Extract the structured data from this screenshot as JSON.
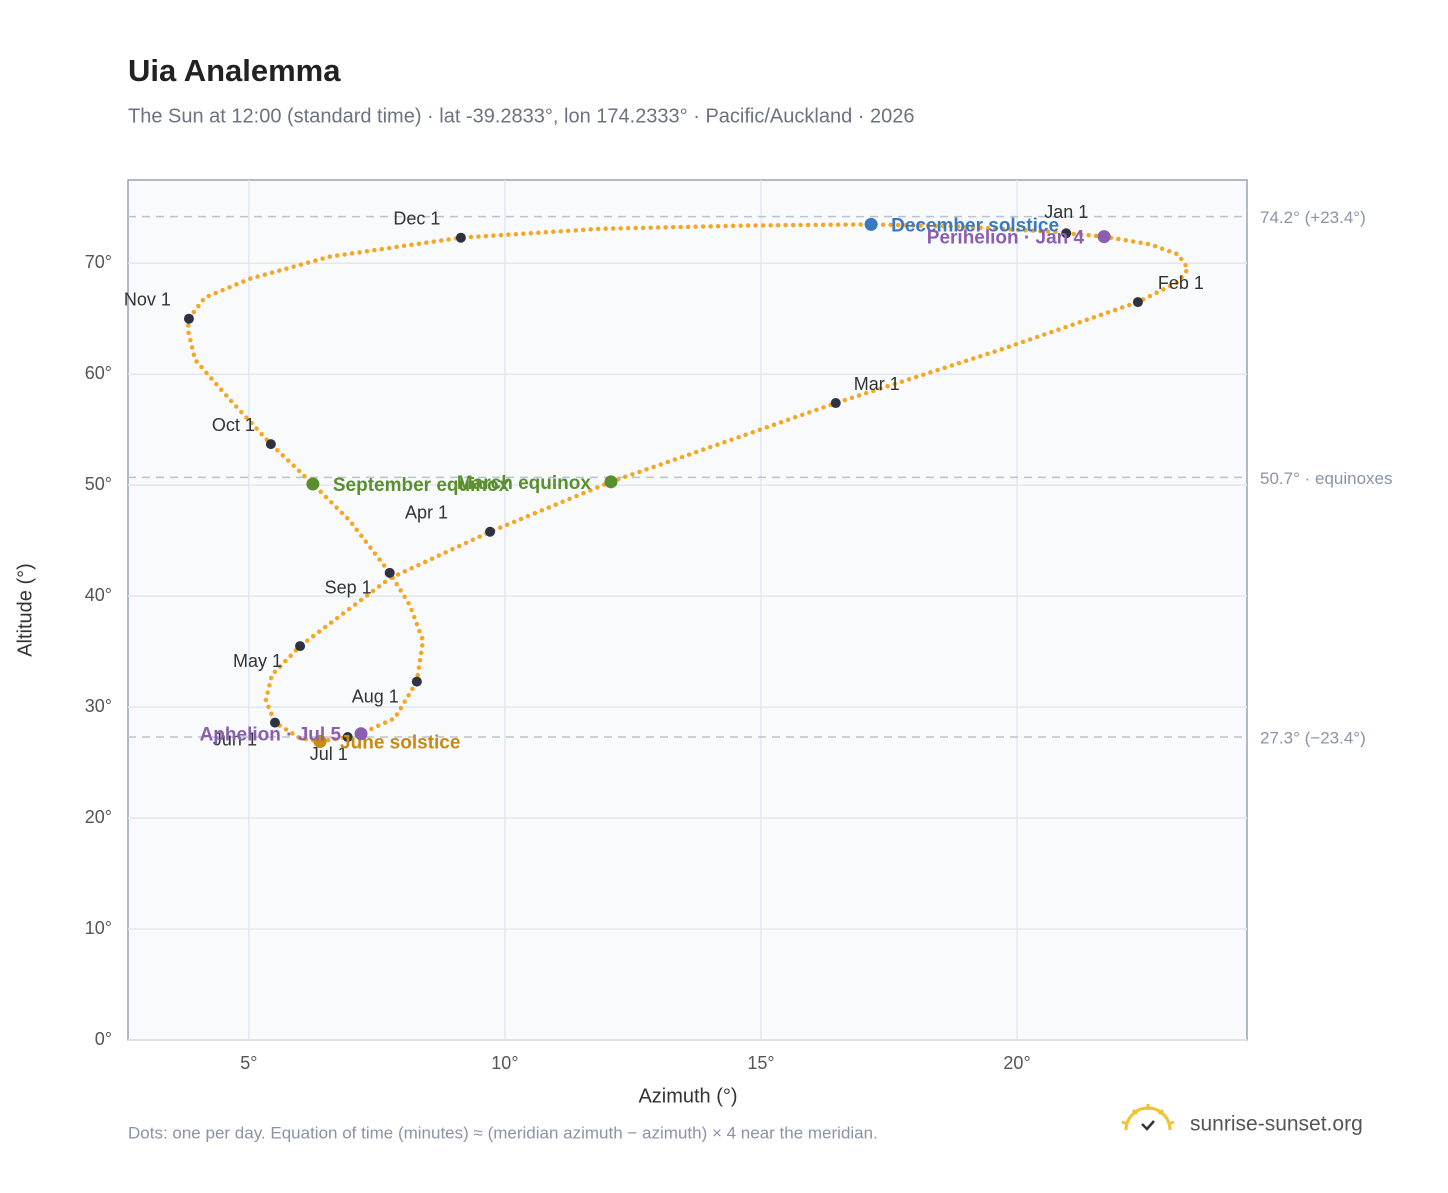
{
  "chart_data": {
    "type": "analemma",
    "title": "Uia Analemma",
    "subtitle": "The Sun at 12:00 (standard time) · lat -39.2833°, lon 174.2333° · Pacific/Auckland · 2026",
    "x_label": "Azimuth (°)",
    "y_label": "Altitude (°)",
    "footnote": "Dots: one per day. Equation of time (minutes) ≈ (meridian azimuth − azimuth) × 4 near the meridian.",
    "brand": "sunrise-sunset.org",
    "xlim": [
      2.64,
      24.49
    ],
    "ylim": [
      0,
      77.5
    ],
    "xticks": [
      {
        "value": 5,
        "label": "5°"
      },
      {
        "value": 10,
        "label": "10°"
      },
      {
        "value": 15,
        "label": "15°"
      },
      {
        "value": 20,
        "label": "20°"
      }
    ],
    "yticks": [
      {
        "value": 0,
        "label": "0°"
      },
      {
        "value": 10,
        "label": "10°"
      },
      {
        "value": 20,
        "label": "20°"
      },
      {
        "value": 30,
        "label": "30°"
      },
      {
        "value": 40,
        "label": "40°"
      },
      {
        "value": 50,
        "label": "50°"
      },
      {
        "value": 60,
        "label": "60°"
      },
      {
        "value": 70,
        "label": "70°"
      }
    ],
    "grid": true,
    "color": "#f5a623",
    "path": {
      "x": [
        20.96,
        21.7,
        22.6,
        23.14,
        23.34,
        23.14,
        22.36,
        19.67,
        16.46,
        13.81,
        12.07,
        9.71,
        7.75,
        6.0,
        5.45,
        5.33,
        5.51,
        6.0,
        6.39,
        6.93,
        7.19,
        7.85,
        8.28,
        8.4,
        8.14,
        7.75,
        6.97,
        6.25,
        5.43,
        4.63,
        3.95,
        3.81,
        3.83,
        4.14,
        5.02,
        6.58,
        9.14,
        11.86,
        14.79,
        17.15,
        18.89,
        20.84
      ],
      "y": [
        72.7,
        72.4,
        71.7,
        70.8,
        69.5,
        68.3,
        66.5,
        62.2,
        57.4,
        53.1,
        50.3,
        45.8,
        41.6,
        35.5,
        32.9,
        30.6,
        28.6,
        27.2,
        26.9,
        27.3,
        27.6,
        29.0,
        32.3,
        36.0,
        39.2,
        42.1,
        46.8,
        50.1,
        53.7,
        57.7,
        61.3,
        64.0,
        65.0,
        66.9,
        68.6,
        70.6,
        72.3,
        73.1,
        73.4,
        73.5,
        73.3,
        72.8
      ]
    },
    "months": [
      {
        "label": "Jan 1",
        "x": 20.96,
        "y": 72.7
      },
      {
        "label": "Feb 1",
        "x": 22.36,
        "y": 66.5
      },
      {
        "label": "Mar 1",
        "x": 16.46,
        "y": 57.4
      },
      {
        "label": "Apr 1",
        "x": 9.71,
        "y": 45.8
      },
      {
        "label": "May 1",
        "x": 6.0,
        "y": 35.5
      },
      {
        "label": "Jun 1",
        "x": 5.51,
        "y": 28.6
      },
      {
        "label": "Jul 1",
        "x": 6.93,
        "y": 27.3
      },
      {
        "label": "Aug 1",
        "x": 8.28,
        "y": 32.3
      },
      {
        "label": "Sep 1",
        "x": 7.75,
        "y": 42.1
      },
      {
        "label": "Oct 1",
        "x": 5.43,
        "y": 53.7
      },
      {
        "label": "Nov 1",
        "x": 3.83,
        "y": 65.0
      },
      {
        "label": "Dec 1",
        "x": 9.14,
        "y": 72.3
      }
    ],
    "events": [
      {
        "label": "December solstice",
        "color": "#3a78c0",
        "x": 17.15,
        "y": 73.5
      },
      {
        "label": "Perihelion · Jan 4",
        "color": "#8b5fb0",
        "x": 21.7,
        "y": 72.4
      },
      {
        "label": "March equinox",
        "color": "#5a8f2e",
        "x": 12.07,
        "y": 50.3
      },
      {
        "label": "September equinox",
        "color": "#5a8f2e",
        "x": 6.25,
        "y": 50.1
      },
      {
        "label": "June solstice",
        "color": "#c98a12",
        "x": 6.39,
        "y": 26.9
      },
      {
        "label": "Aphelion · Jul 5",
        "color": "#8b5fb0",
        "x": 7.19,
        "y": 27.6
      }
    ],
    "reference_lines": [
      {
        "value": 74.2,
        "label": "74.2° (+23.4°)"
      },
      {
        "value": 50.7,
        "label": "50.7° · equinoxes"
      },
      {
        "value": 27.3,
        "label": "27.3° (−23.4°)"
      }
    ]
  }
}
